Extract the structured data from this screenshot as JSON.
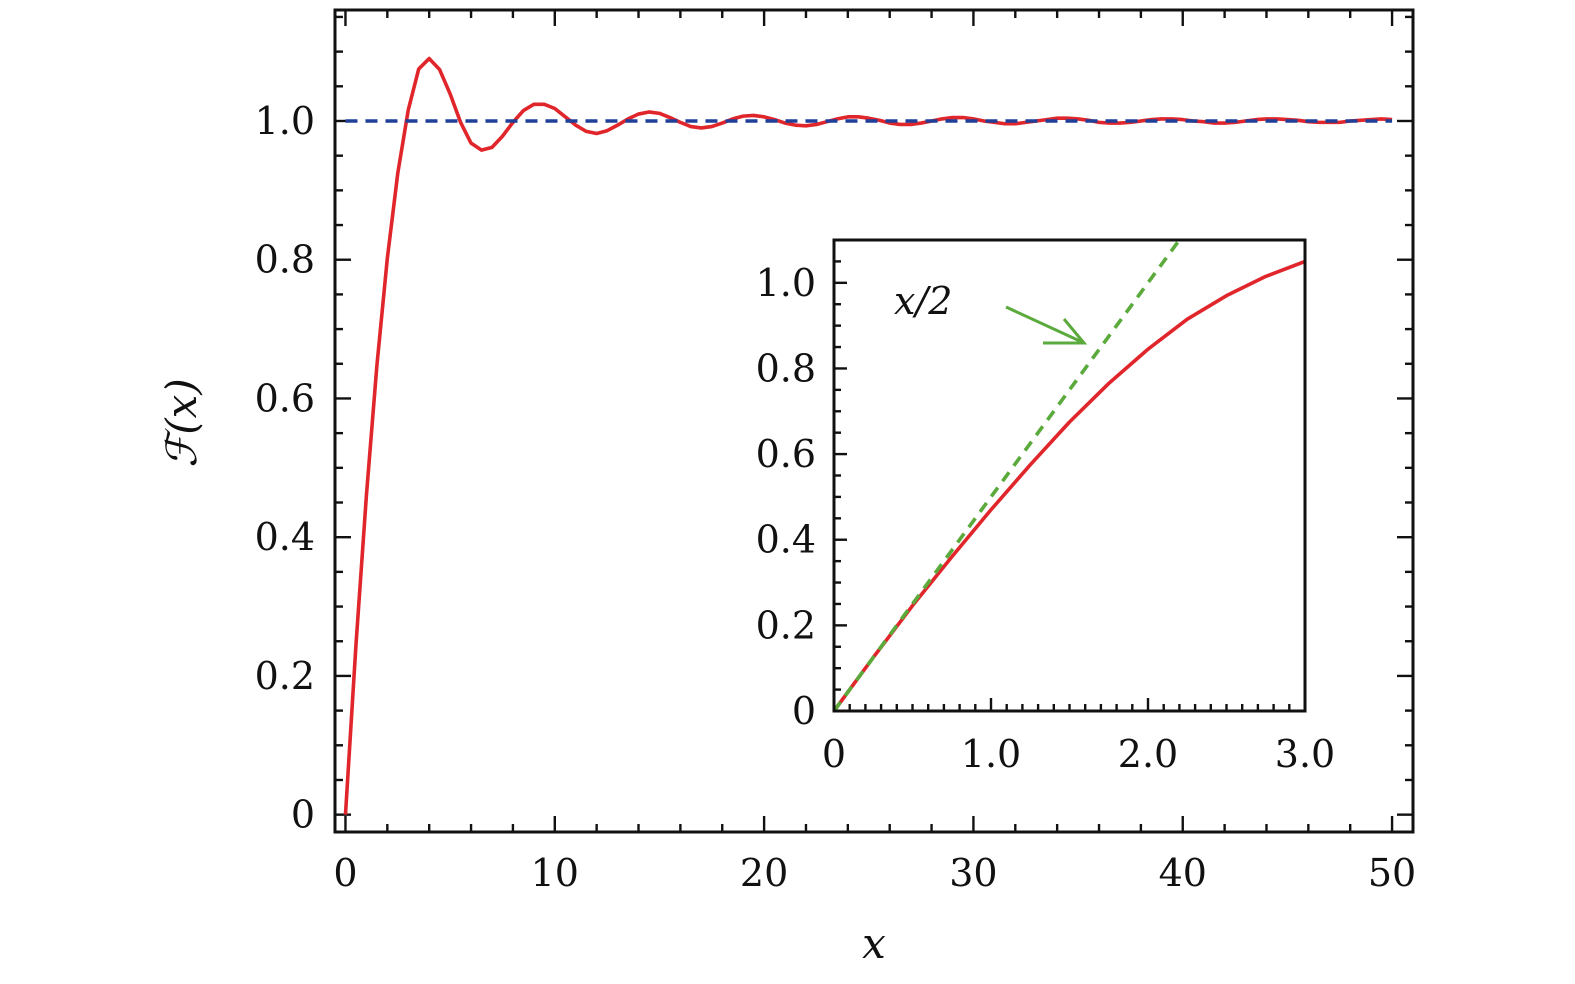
{
  "chart_data": [
    {
      "type": "line",
      "panel": "main",
      "title": "",
      "xlabel": "x",
      "ylabel": "ℱ(x)",
      "xlim": [
        -0.5,
        51
      ],
      "ylim": [
        -0.025,
        1.16
      ],
      "xticks": [
        0,
        10,
        20,
        30,
        40,
        50
      ],
      "xtick_labels": [
        "0",
        "10",
        "20",
        "30",
        "40",
        "50"
      ],
      "yticks": [
        0,
        0.2,
        0.4,
        0.6,
        0.8,
        1.0
      ],
      "ytick_labels": [
        "0",
        "0.2",
        "0.4",
        "0.6",
        "0.8",
        "1.0"
      ],
      "grid": false,
      "series": [
        {
          "name": "ℱ(x)",
          "style": "solid",
          "color": "#e0262b",
          "x": [
            0,
            0.5,
            1,
            1.5,
            2,
            2.5,
            3,
            3.5,
            4,
            4.5,
            5,
            5.5,
            6,
            6.5,
            7,
            7.5,
            8,
            8.5,
            9,
            9.5,
            10,
            10.5,
            11,
            11.5,
            12,
            12.5,
            13,
            13.5,
            14,
            14.5,
            15,
            15.5,
            16,
            16.5,
            17,
            17.5,
            18,
            18.5,
            19,
            19.5,
            20,
            20.5,
            21,
            21.5,
            22,
            22.5,
            23,
            23.5,
            24,
            24.5,
            25,
            25.5,
            26,
            26.5,
            27,
            27.5,
            28,
            28.5,
            29,
            29.5,
            30,
            30.5,
            31,
            31.5,
            32,
            32.5,
            33,
            33.5,
            34,
            34.5,
            35,
            35.5,
            36,
            36.5,
            37,
            37.5,
            38,
            38.5,
            39,
            39.5,
            40,
            40.5,
            41,
            41.5,
            42,
            42.5,
            43,
            43.5,
            44,
            44.5,
            45,
            45.5,
            46,
            46.5,
            47,
            47.5,
            48,
            48.5,
            49,
            49.5,
            50
          ],
          "y": [
            0.0,
            0.244,
            0.46,
            0.647,
            0.802,
            0.925,
            1.016,
            1.075,
            1.09,
            1.074,
            1.039,
            0.998,
            0.968,
            0.958,
            0.962,
            0.978,
            0.998,
            1.015,
            1.024,
            1.024,
            1.018,
            1.006,
            0.994,
            0.985,
            0.982,
            0.986,
            0.994,
            1.003,
            1.01,
            1.013,
            1.011,
            1.005,
            0.998,
            0.992,
            0.99,
            0.992,
            0.997,
            1.003,
            1.007,
            1.008,
            1.006,
            1.002,
            0.997,
            0.994,
            0.993,
            0.995,
            0.999,
            1.003,
            1.006,
            1.006,
            1.004,
            1.001,
            0.997,
            0.995,
            0.995,
            0.997,
            1.0,
            1.003,
            1.005,
            1.005,
            1.003,
            1.0,
            0.998,
            0.996,
            0.996,
            0.998,
            1.0,
            1.002,
            1.004,
            1.004,
            1.003,
            1.001,
            0.998,
            0.997,
            0.997,
            0.998,
            1.0,
            1.002,
            1.003,
            1.003,
            1.002,
            1.0,
            0.999,
            0.997,
            0.997,
            0.998,
            1.0,
            1.002,
            1.003,
            1.003,
            1.002,
            1.001,
            0.999,
            0.998,
            0.998,
            0.998,
            1.0,
            1.001,
            1.002,
            1.003,
            1.002
          ]
        },
        {
          "name": "asymptote 1",
          "style": "dashed",
          "color": "#1f3f99",
          "x": [
            0,
            50
          ],
          "y": [
            1.0,
            1.0
          ]
        }
      ]
    },
    {
      "type": "line",
      "panel": "inset",
      "title": "",
      "xlabel": "",
      "ylabel": "",
      "xlim": [
        0,
        3.0
      ],
      "ylim": [
        0,
        1.1
      ],
      "xticks": [
        0,
        1.0,
        2.0,
        3.0
      ],
      "xtick_labels": [
        "0",
        "1.0",
        "2.0",
        "3.0"
      ],
      "yticks": [
        0,
        0.2,
        0.4,
        0.6,
        0.8,
        1.0
      ],
      "ytick_labels": [
        "0",
        "0.2",
        "0.4",
        "0.6",
        "0.8",
        "1.0"
      ],
      "grid": false,
      "series": [
        {
          "name": "ℱ(x)",
          "style": "solid",
          "color": "#e0262b",
          "x": [
            0,
            0.25,
            0.5,
            0.75,
            1.0,
            1.25,
            1.5,
            1.75,
            2.0,
            2.25,
            2.5,
            2.75,
            3.0
          ],
          "y": [
            0.0,
            0.125,
            0.246,
            0.36,
            0.47,
            0.575,
            0.675,
            0.765,
            0.845,
            0.915,
            0.97,
            1.015,
            1.05
          ]
        },
        {
          "name": "x/2",
          "style": "dashed",
          "color": "#5aaa3c",
          "x": [
            0,
            2.2
          ],
          "y": [
            0,
            1.1
          ]
        }
      ],
      "annotations": [
        {
          "text": "x/2",
          "points_to": [
            1.62,
            0.81
          ]
        }
      ]
    }
  ]
}
